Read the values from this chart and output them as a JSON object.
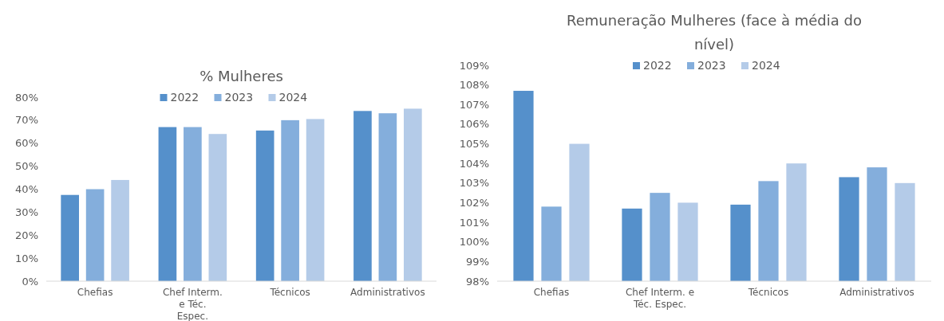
{
  "chart_data": [
    {
      "type": "bar",
      "title": "% Mulheres",
      "categories": [
        "Chefias",
        "Chef Interm. e Téc. Espec.",
        "Técnicos",
        "Administrativos"
      ],
      "series": [
        {
          "name": "2022",
          "color": "#5590cb",
          "values": [
            37.5,
            67,
            65.5,
            74
          ]
        },
        {
          "name": "2023",
          "color": "#84aedc",
          "values": [
            40,
            67,
            70,
            73
          ]
        },
        {
          "name": "2024",
          "color": "#b4cbe8",
          "values": [
            44,
            64,
            70.5,
            75
          ]
        }
      ],
      "ylim": [
        0,
        80
      ],
      "yticks": [
        {
          "value": 0,
          "label": "0%"
        },
        {
          "value": 10,
          "label": "10%"
        },
        {
          "value": 20,
          "label": "20%"
        },
        {
          "value": 30,
          "label": "30%"
        },
        {
          "value": 40,
          "label": "40%"
        },
        {
          "value": 50,
          "label": "50%"
        },
        {
          "value": 60,
          "label": "60%"
        },
        {
          "value": 70,
          "label": "70%"
        },
        {
          "value": 80,
          "label": "80%"
        }
      ],
      "grid": false,
      "legend": "top"
    },
    {
      "type": "bar",
      "title": "Remuneração Mulheres (face à média do nível)",
      "categories": [
        "Chefias",
        "Chef Interm. e Téc. Espec.",
        "Técnicos",
        "Administrativos"
      ],
      "series": [
        {
          "name": "2022",
          "color": "#5590cb",
          "values": [
            107.7,
            101.7,
            101.9,
            103.3
          ]
        },
        {
          "name": "2023",
          "color": "#84aedc",
          "values": [
            101.8,
            102.5,
            103.1,
            103.8
          ]
        },
        {
          "name": "2024",
          "color": "#b4cbe8",
          "values": [
            105.0,
            102.0,
            104.0,
            103.0
          ]
        }
      ],
      "ylim": [
        98,
        109
      ],
      "yticks": [
        {
          "value": 98,
          "label": "98%"
        },
        {
          "value": 99,
          "label": "99%"
        },
        {
          "value": 100,
          "label": "100%"
        },
        {
          "value": 101,
          "label": "101%"
        },
        {
          "value": 102,
          "label": "102%"
        },
        {
          "value": 103,
          "label": "103%"
        },
        {
          "value": 104,
          "label": "104%"
        },
        {
          "value": 105,
          "label": "105%"
        },
        {
          "value": 106,
          "label": "106%"
        },
        {
          "value": 107,
          "label": "107%"
        },
        {
          "value": 108,
          "label": "108%"
        },
        {
          "value": 109,
          "label": "109%"
        }
      ],
      "grid": false,
      "legend": "top"
    }
  ]
}
